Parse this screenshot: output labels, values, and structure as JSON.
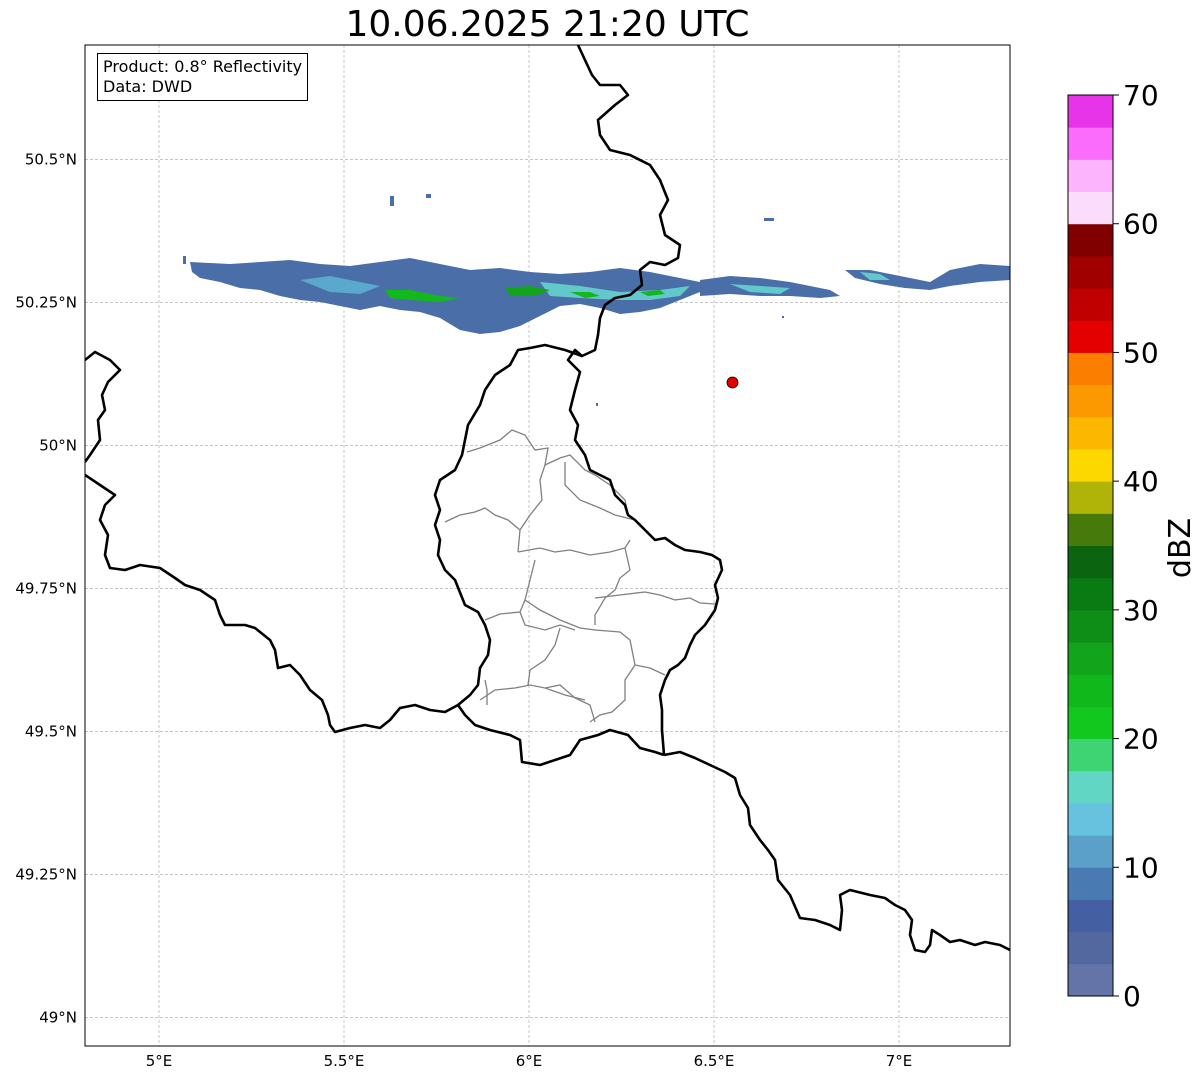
{
  "title": "10.06.2025 21:20 UTC",
  "info": {
    "product": "Product: 0.8° Reflectivity",
    "data_source": "Data: DWD"
  },
  "axes": {
    "lon_range": [
      4.8,
      7.3
    ],
    "lat_range": [
      48.95,
      50.7
    ],
    "lon_ticks": [
      {
        "value": 5.0,
        "label": "5°E"
      },
      {
        "value": 5.5,
        "label": "5.5°E"
      },
      {
        "value": 6.0,
        "label": "6°E"
      },
      {
        "value": 6.5,
        "label": "6.5°E"
      },
      {
        "value": 7.0,
        "label": "7°E"
      }
    ],
    "lat_ticks": [
      {
        "value": 49.0,
        "label": "49°N"
      },
      {
        "value": 49.25,
        "label": "49.25°N"
      },
      {
        "value": 49.5,
        "label": "49.5°N"
      },
      {
        "value": 49.75,
        "label": "49.75°N"
      },
      {
        "value": 50.0,
        "label": "50°N"
      },
      {
        "value": 50.25,
        "label": "50.25°N"
      },
      {
        "value": 50.5,
        "label": "50.5°N"
      }
    ],
    "grid": true
  },
  "colorbar": {
    "label": "dBZ",
    "min": 0,
    "max": 70,
    "ticks": [
      "0",
      "10",
      "20",
      "30",
      "40",
      "50",
      "60",
      "70"
    ],
    "colors": [
      "#6474a8",
      "#52689e",
      "#4460a2",
      "#4a7ab2",
      "#5aa0c8",
      "#66c2de",
      "#62d6c4",
      "#3ed474",
      "#12c81e",
      "#10b81c",
      "#12a41a",
      "#0e8e16",
      "#0a7a12",
      "#0a6410",
      "#467a0a",
      "#b0b408",
      "#fcd800",
      "#fcb800",
      "#fc9800",
      "#fc7e00",
      "#e40000",
      "#c00000",
      "#a00000",
      "#800000",
      "#fcdcfc",
      "#fcb4fc",
      "#fc6cfc",
      "#e834e8"
    ]
  },
  "radar_site": {
    "lon": 6.55,
    "lat": 50.11,
    "color": "#e00000"
  }
}
